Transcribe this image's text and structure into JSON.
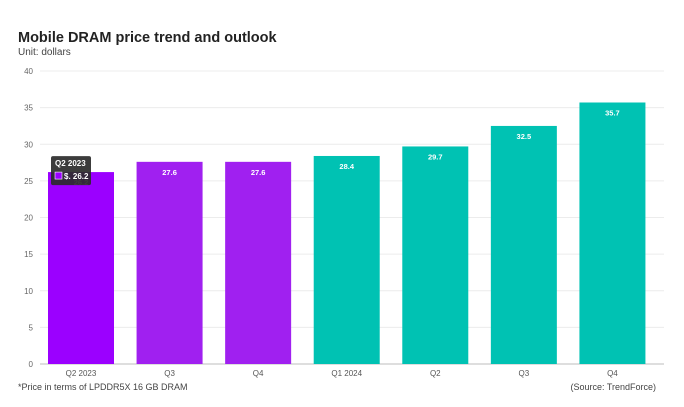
{
  "chart_data": {
    "type": "bar",
    "title": "Mobile DRAM price trend and outlook",
    "subtitle": "Unit: dollars",
    "categories": [
      "Q2 2023",
      "Q3",
      "Q4",
      "Q1 2024",
      "Q2",
      "Q3",
      "Q4"
    ],
    "values": [
      26.2,
      27.6,
      27.6,
      28.4,
      29.7,
      32.5,
      35.7
    ],
    "bar_colors": [
      "#9b00ff",
      "#a020f0",
      "#a020f0",
      "#00c2b3",
      "#00c2b3",
      "#00c2b3",
      "#00c2b3"
    ],
    "ylim": [
      0,
      40
    ],
    "yticks": [
      0,
      5,
      10,
      15,
      20,
      25,
      30,
      35,
      40
    ],
    "grid": true,
    "xlabel": "",
    "ylabel": "",
    "tooltip": {
      "category_index": 0,
      "title": "Q2 2023",
      "value_text": "$. 26.2",
      "swatch_color": "#9b00ff"
    }
  },
  "footnote": "*Price in terms of LPDDR5X 16 GB DRAM",
  "source": "(Source: TrendForce)"
}
